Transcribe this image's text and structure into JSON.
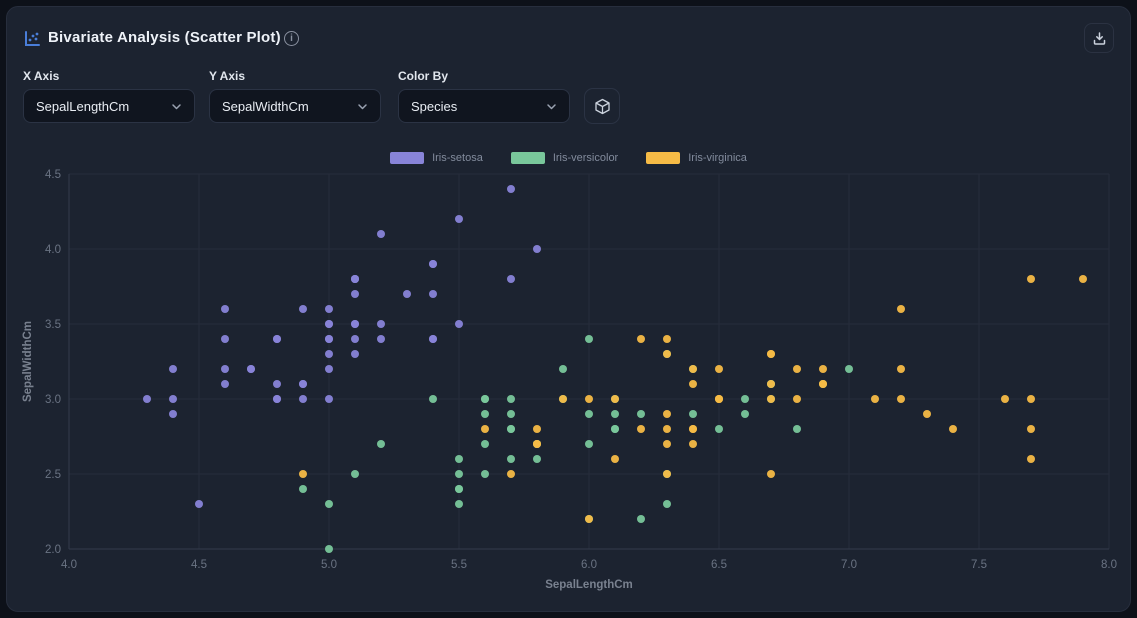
{
  "header": {
    "title": "Bivariate Analysis (Scatter Plot)",
    "title_icon": "scatter-plot-icon",
    "info_icon": "info-icon",
    "download_icon": "download-icon"
  },
  "controls": {
    "x_axis": {
      "label": "X Axis",
      "value": "SepalLengthCm"
    },
    "y_axis": {
      "label": "Y Axis",
      "value": "SepalWidthCm"
    },
    "color_by": {
      "label": "Color By",
      "value": "Species"
    },
    "cube_button_icon": "cube-icon"
  },
  "colors": {
    "accent_blue": "#4a7ed9",
    "card_bg": "#1c2330",
    "page_bg": "#0d1119",
    "grid": "#262d3b",
    "axis_line": "#333b4c",
    "tick_text": "#6a7383",
    "axis_title_text": "#79818f",
    "setosa": "#8884d8",
    "versicolor": "#79c79b",
    "virginica": "#f6bb46"
  },
  "chart_data": {
    "type": "scatter",
    "xlabel": "SepalLengthCm",
    "ylabel": "SepalWidthCm",
    "xlim": [
      4.0,
      8.0
    ],
    "ylim": [
      2.0,
      4.5
    ],
    "x_ticks": [
      "4.0",
      "4.5",
      "5.0",
      "5.5",
      "6.0",
      "6.5",
      "7.0",
      "7.5",
      "8.0"
    ],
    "y_ticks": [
      "2.0",
      "2.5",
      "3.0",
      "3.5",
      "4.0",
      "4.5"
    ],
    "grid": true,
    "legend_position": "top-center",
    "point_radius": 4,
    "series": [
      {
        "name": "Iris-setosa",
        "color": "#8884d8",
        "points": [
          [
            5.1,
            3.5
          ],
          [
            4.9,
            3.0
          ],
          [
            4.7,
            3.2
          ],
          [
            4.6,
            3.1
          ],
          [
            5.0,
            3.6
          ],
          [
            5.4,
            3.9
          ],
          [
            4.6,
            3.4
          ],
          [
            5.0,
            3.4
          ],
          [
            4.4,
            2.9
          ],
          [
            4.9,
            3.1
          ],
          [
            5.4,
            3.7
          ],
          [
            4.8,
            3.4
          ],
          [
            4.8,
            3.0
          ],
          [
            4.3,
            3.0
          ],
          [
            5.8,
            4.0
          ],
          [
            5.7,
            4.4
          ],
          [
            5.4,
            3.9
          ],
          [
            5.1,
            3.5
          ],
          [
            5.7,
            3.8
          ],
          [
            5.1,
            3.8
          ],
          [
            5.4,
            3.4
          ],
          [
            5.1,
            3.7
          ],
          [
            4.6,
            3.6
          ],
          [
            5.1,
            3.3
          ],
          [
            4.8,
            3.4
          ],
          [
            5.0,
            3.0
          ],
          [
            5.0,
            3.4
          ],
          [
            5.2,
            3.5
          ],
          [
            5.2,
            3.4
          ],
          [
            4.7,
            3.2
          ],
          [
            4.8,
            3.1
          ],
          [
            5.4,
            3.4
          ],
          [
            5.2,
            4.1
          ],
          [
            5.5,
            4.2
          ],
          [
            4.9,
            3.1
          ],
          [
            5.0,
            3.2
          ],
          [
            5.5,
            3.5
          ],
          [
            4.9,
            3.6
          ],
          [
            4.4,
            3.0
          ],
          [
            5.1,
            3.4
          ],
          [
            5.0,
            3.5
          ],
          [
            4.5,
            2.3
          ],
          [
            4.4,
            3.2
          ],
          [
            5.0,
            3.5
          ],
          [
            5.1,
            3.8
          ],
          [
            4.8,
            3.0
          ],
          [
            5.1,
            3.8
          ],
          [
            4.6,
            3.2
          ],
          [
            5.3,
            3.7
          ],
          [
            5.0,
            3.3
          ]
        ]
      },
      {
        "name": "Iris-versicolor",
        "color": "#79c79b",
        "points": [
          [
            7.0,
            3.2
          ],
          [
            6.4,
            3.2
          ],
          [
            6.9,
            3.1
          ],
          [
            5.5,
            2.3
          ],
          [
            6.5,
            2.8
          ],
          [
            5.7,
            2.8
          ],
          [
            6.3,
            3.3
          ],
          [
            4.9,
            2.4
          ],
          [
            6.6,
            2.9
          ],
          [
            5.2,
            2.7
          ],
          [
            5.0,
            2.0
          ],
          [
            5.9,
            3.0
          ],
          [
            6.0,
            2.2
          ],
          [
            6.1,
            2.9
          ],
          [
            5.6,
            2.9
          ],
          [
            6.7,
            3.1
          ],
          [
            5.6,
            3.0
          ],
          [
            5.8,
            2.7
          ],
          [
            6.2,
            2.2
          ],
          [
            5.6,
            2.5
          ],
          [
            5.9,
            3.2
          ],
          [
            6.1,
            2.8
          ],
          [
            6.3,
            2.5
          ],
          [
            6.1,
            2.8
          ],
          [
            6.4,
            2.9
          ],
          [
            6.6,
            3.0
          ],
          [
            6.8,
            2.8
          ],
          [
            6.7,
            3.0
          ],
          [
            6.0,
            2.9
          ],
          [
            5.7,
            2.6
          ],
          [
            5.5,
            2.4
          ],
          [
            5.5,
            2.4
          ],
          [
            5.8,
            2.7
          ],
          [
            6.0,
            2.7
          ],
          [
            5.4,
            3.0
          ],
          [
            6.0,
            3.4
          ],
          [
            6.7,
            3.1
          ],
          [
            6.3,
            2.3
          ],
          [
            5.6,
            3.0
          ],
          [
            5.5,
            2.5
          ],
          [
            5.5,
            2.6
          ],
          [
            6.1,
            3.0
          ],
          [
            5.8,
            2.6
          ],
          [
            5.0,
            2.3
          ],
          [
            5.6,
            2.7
          ],
          [
            5.7,
            3.0
          ],
          [
            5.7,
            2.9
          ],
          [
            6.2,
            2.9
          ],
          [
            5.1,
            2.5
          ],
          [
            5.7,
            2.8
          ]
        ]
      },
      {
        "name": "Iris-virginica",
        "color": "#f6bb46",
        "points": [
          [
            6.3,
            3.3
          ],
          [
            5.8,
            2.7
          ],
          [
            7.1,
            3.0
          ],
          [
            6.3,
            2.9
          ],
          [
            6.5,
            3.0
          ],
          [
            7.6,
            3.0
          ],
          [
            4.9,
            2.5
          ],
          [
            7.3,
            2.9
          ],
          [
            6.7,
            2.5
          ],
          [
            7.2,
            3.6
          ],
          [
            6.5,
            3.2
          ],
          [
            6.4,
            2.7
          ],
          [
            6.8,
            3.0
          ],
          [
            5.7,
            2.5
          ],
          [
            5.8,
            2.8
          ],
          [
            6.4,
            3.2
          ],
          [
            6.5,
            3.0
          ],
          [
            7.7,
            3.8
          ],
          [
            7.7,
            2.6
          ],
          [
            6.0,
            2.2
          ],
          [
            6.9,
            3.2
          ],
          [
            5.6,
            2.8
          ],
          [
            7.7,
            2.8
          ],
          [
            6.3,
            2.7
          ],
          [
            6.7,
            3.3
          ],
          [
            7.2,
            3.2
          ],
          [
            6.2,
            2.8
          ],
          [
            6.1,
            3.0
          ],
          [
            6.4,
            2.8
          ],
          [
            7.2,
            3.0
          ],
          [
            7.4,
            2.8
          ],
          [
            7.9,
            3.8
          ],
          [
            6.4,
            2.8
          ],
          [
            6.3,
            2.8
          ],
          [
            6.1,
            2.6
          ],
          [
            7.7,
            3.0
          ],
          [
            6.3,
            3.4
          ],
          [
            6.4,
            3.1
          ],
          [
            6.0,
            3.0
          ],
          [
            6.9,
            3.1
          ],
          [
            6.7,
            3.1
          ],
          [
            6.9,
            3.1
          ],
          [
            5.8,
            2.7
          ],
          [
            6.8,
            3.2
          ],
          [
            6.7,
            3.3
          ],
          [
            6.7,
            3.0
          ],
          [
            6.3,
            2.5
          ],
          [
            6.5,
            3.0
          ],
          [
            6.2,
            3.4
          ],
          [
            5.9,
            3.0
          ]
        ]
      }
    ]
  }
}
